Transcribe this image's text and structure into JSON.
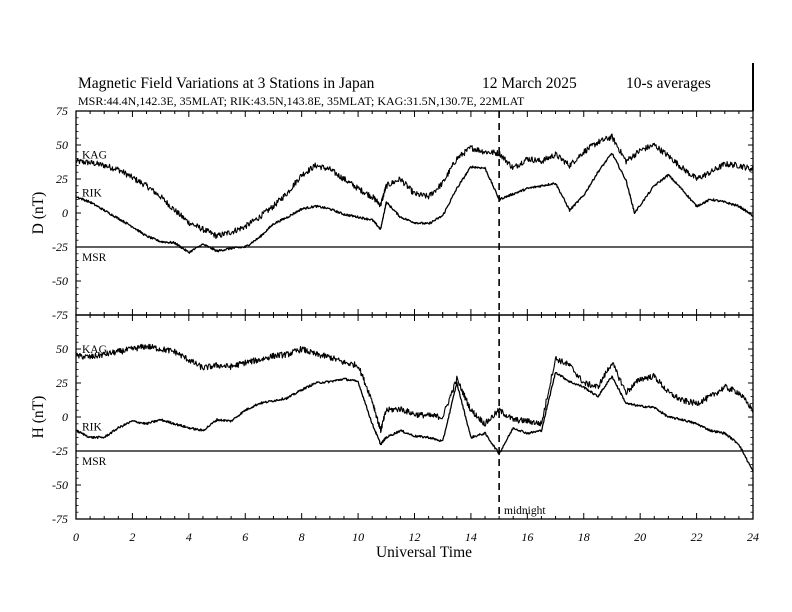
{
  "chart_data": {
    "type": "line",
    "title": "Magnetic Field Variations at 3 Stations in Japan",
    "date": "12 March  2025",
    "averaging": "10-s averages",
    "subtitle": "MSR:44.4N,142.3E, 35MLAT;  RIK:43.5N,143.8E, 35MLAT;  KAG:31.5N,130.7E, 22MLAT",
    "xlabel": "Universal Time",
    "xlim": [
      0,
      24
    ],
    "x_ticks": [
      "0",
      "2",
      "4",
      "6",
      "8",
      "10",
      "12",
      "14",
      "16",
      "18",
      "20",
      "22",
      "24"
    ],
    "annotation": {
      "text": "midnight",
      "x": 15
    },
    "panels": [
      {
        "ylabel": "D (nT)",
        "ylim": [
          -75,
          75
        ],
        "y_ticks": [
          "75",
          "50",
          "25",
          "0",
          "-25",
          "-50",
          "-75"
        ],
        "series": [
          {
            "name": "KAG",
            "x": [
              0,
              0.5,
              1,
              1.5,
              2,
              2.5,
              3,
              3.5,
              4,
              4.5,
              5,
              5.5,
              6,
              6.5,
              7,
              7.5,
              8,
              8.5,
              9,
              9.5,
              10,
              10.5,
              10.8,
              11,
              11.5,
              12,
              12.5,
              13,
              13.5,
              14,
              14.5,
              15,
              15.5,
              16,
              16.5,
              17,
              17.5,
              18,
              18.5,
              19,
              19.5,
              20,
              20.5,
              21,
              21.5,
              22,
              22.5,
              23,
              23.5,
              24
            ],
            "values": [
              38,
              37,
              35,
              32,
              26,
              20,
              12,
              2,
              -7,
              -12,
              -17,
              -14,
              -10,
              -3,
              5,
              15,
              28,
              35,
              32,
              25,
              18,
              12,
              6,
              20,
              25,
              14,
              12,
              22,
              40,
              48,
              45,
              44,
              33,
              40,
              38,
              43,
              35,
              45,
              52,
              56,
              38,
              46,
              50,
              42,
              33,
              25,
              30,
              36,
              35,
              32
            ]
          },
          {
            "name": "RIK",
            "x": [
              0,
              0.5,
              1,
              1.5,
              2,
              2.5,
              3,
              3.5,
              4,
              4.5,
              5,
              5.5,
              6,
              6.5,
              7,
              7.5,
              8,
              8.5,
              9,
              9.5,
              10,
              10.5,
              10.8,
              11,
              11.5,
              12,
              12.5,
              13,
              13.5,
              14,
              14.5,
              15,
              15.5,
              16,
              16.5,
              17,
              17.5,
              18,
              18.5,
              19,
              19.5,
              19.8,
              20.5,
              21,
              21.5,
              22,
              22.5,
              23,
              23.5,
              24
            ],
            "values": [
              12,
              8,
              2,
              -4,
              -10,
              -17,
              -21,
              -22,
              -29,
              -23,
              -28,
              -26,
              -25,
              -18,
              -8,
              -3,
              3,
              5,
              3,
              -1,
              -3,
              -5,
              -12,
              8,
              -3,
              -7,
              -8,
              -2,
              18,
              34,
              33,
              10,
              14,
              18,
              20,
              22,
              2,
              13,
              30,
              44,
              24,
              0,
              20,
              28,
              17,
              5,
              10,
              8,
              5,
              -2
            ]
          },
          {
            "name": "MSR",
            "x": [
              0,
              0.5,
              1,
              1.5,
              2,
              2.5,
              3,
              3.5,
              4,
              4.5,
              5,
              5.5,
              6,
              6.5,
              7,
              7.5,
              8,
              8.5,
              9,
              9.5,
              10,
              10.5,
              10.8,
              11,
              11.5,
              12,
              12.5,
              13,
              13.5,
              14,
              14.5,
              15,
              15.5,
              16,
              16.5,
              17,
              17.5,
              18,
              18.5,
              19,
              19.5,
              20,
              20.5,
              21,
              21.5,
              22,
              22.5,
              23,
              23.5,
              24
            ],
            "values": [
              -25,
              -25,
              -25,
              -25,
              -25,
              -25,
              -25,
              -25,
              -25,
              -25,
              -25,
              -25,
              -25,
              -25,
              -25,
              -25,
              -25,
              -25,
              -25,
              -25,
              -25,
              -25,
              -25,
              -25,
              -25,
              -25,
              -25,
              -25,
              -25,
              -25,
              -25,
              -25,
              -25,
              -25,
              -25,
              -25,
              -25,
              -25,
              -25,
              -25,
              -25,
              -25,
              -25,
              -25,
              -25,
              -25,
              -25,
              -25,
              -25,
              -25
            ]
          }
        ]
      },
      {
        "ylabel": "H (nT)",
        "ylim": [
          -75,
          75
        ],
        "y_ticks": [
          "",
          "50",
          "25",
          "0",
          "-25",
          "-50",
          "-75"
        ],
        "series": [
          {
            "name": "KAG",
            "x": [
              0,
              0.5,
              1,
              1.5,
              2,
              2.5,
              3,
              3.5,
              4,
              4.5,
              5,
              5.5,
              6,
              6.5,
              7,
              7.5,
              8,
              8.5,
              9,
              9.5,
              10,
              10.5,
              10.8,
              11,
              11.5,
              12,
              12.5,
              13,
              13.5,
              14,
              14.5,
              15,
              15.5,
              16,
              16.5,
              17,
              17.5,
              18,
              18.5,
              19,
              19.5,
              20,
              20.5,
              21,
              21.5,
              22,
              22.5,
              23,
              23.5,
              24
            ],
            "values": [
              45,
              44,
              46,
              48,
              50,
              52,
              50,
              48,
              42,
              36,
              38,
              37,
              40,
              42,
              45,
              46,
              50,
              46,
              44,
              40,
              38,
              12,
              -10,
              5,
              6,
              2,
              1,
              0,
              28,
              5,
              -5,
              5,
              -2,
              -3,
              -5,
              43,
              38,
              25,
              22,
              40,
              18,
              28,
              30,
              18,
              12,
              10,
              15,
              22,
              18,
              5
            ]
          },
          {
            "name": "RIK",
            "x": [
              0,
              0.5,
              1,
              1.5,
              2,
              2.5,
              3,
              3.5,
              4,
              4.5,
              5,
              5.5,
              6,
              6.5,
              7,
              7.5,
              8,
              8.5,
              9,
              9.5,
              10,
              10.5,
              10.8,
              11,
              11.5,
              12,
              12.5,
              13,
              13.5,
              14,
              14.5,
              15,
              15.5,
              16,
              16.5,
              17,
              17.5,
              18,
              18.5,
              19,
              19.5,
              20,
              20.5,
              21,
              21.5,
              22,
              22.5,
              23,
              23.5,
              24
            ],
            "values": [
              -10,
              -15,
              -15,
              -8,
              -3,
              -5,
              -2,
              -5,
              -8,
              -10,
              -2,
              -3,
              5,
              10,
              12,
              14,
              20,
              25,
              26,
              28,
              26,
              -5,
              -20,
              -15,
              -10,
              -14,
              -15,
              -18,
              25,
              -15,
              -12,
              -27,
              -8,
              -12,
              -10,
              33,
              26,
              22,
              15,
              30,
              10,
              8,
              7,
              0,
              -2,
              -5,
              -10,
              -12,
              -20,
              -40
            ]
          },
          {
            "name": "MSR",
            "x": [
              0,
              0.5,
              1,
              1.5,
              2,
              2.5,
              3,
              3.5,
              4,
              4.5,
              5,
              5.5,
              6,
              6.5,
              7,
              7.5,
              8,
              8.5,
              9,
              9.5,
              10,
              10.5,
              10.8,
              11,
              11.5,
              12,
              12.5,
              13,
              13.5,
              14,
              14.5,
              15,
              15.5,
              16,
              16.5,
              17,
              17.5,
              18,
              18.5,
              19,
              19.5,
              20,
              20.5,
              21,
              21.5,
              22,
              22.5,
              23,
              23.5,
              24
            ],
            "values": [
              -25,
              -25,
              -25,
              -25,
              -25,
              -25,
              -25,
              -25,
              -25,
              -25,
              -25,
              -25,
              -25,
              -25,
              -25,
              -25,
              -25,
              -25,
              -25,
              -25,
              -25,
              -25,
              -25,
              -25,
              -25,
              -25,
              -25,
              -25,
              -25,
              -25,
              -25,
              -25,
              -25,
              -25,
              -25,
              -25,
              -25,
              -25,
              -25,
              -25,
              -25,
              -25,
              -25,
              -25,
              -25,
              -25,
              -25,
              -25,
              -25,
              -25
            ]
          }
        ]
      }
    ]
  }
}
